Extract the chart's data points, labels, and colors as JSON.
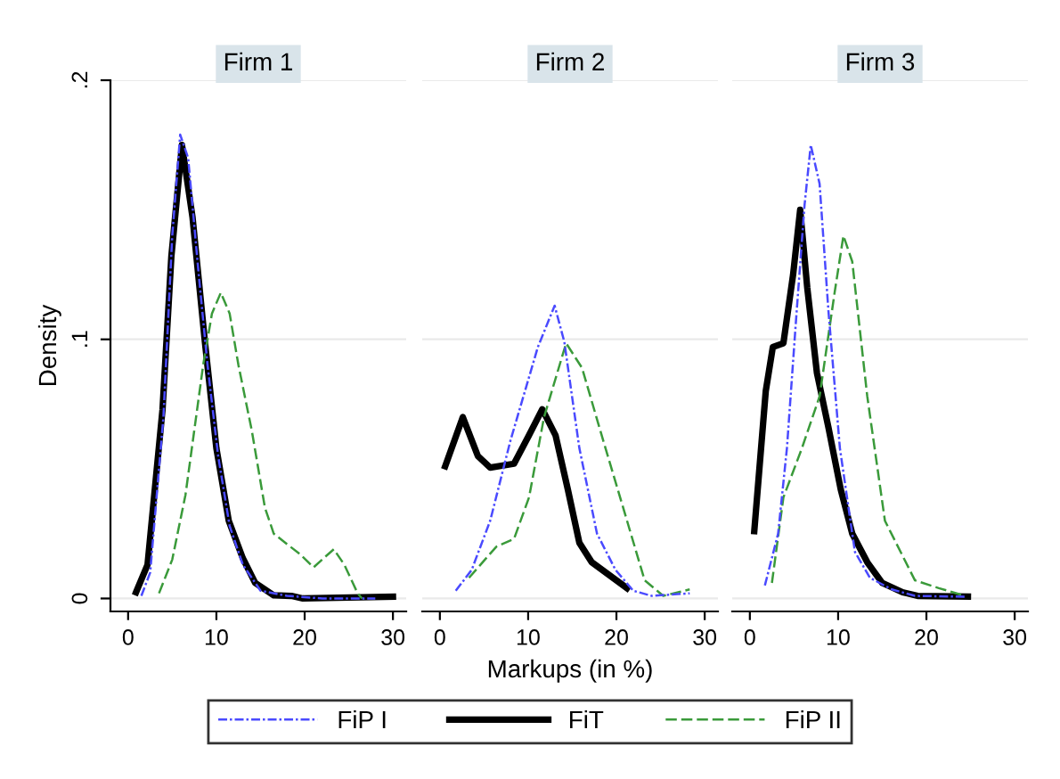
{
  "chart_data": [
    {
      "type": "line",
      "title": "Firm 1",
      "ylabel": "Density",
      "xlim": [
        -2,
        31.5
      ],
      "xticks": [
        0,
        10,
        20,
        30
      ],
      "ylim": [
        -0.005,
        0.2
      ],
      "yticks": [
        {
          "value": 0,
          "label": "0"
        },
        {
          "value": 0.1,
          "label": ".1"
        },
        {
          "value": 0.2,
          "label": ".2"
        }
      ],
      "grid": "y",
      "legend": "bottom",
      "series": [
        {
          "name": "FiP I",
          "color": "#4a4aff",
          "line_style": "dashdot",
          "x": [
            1.5,
            2.5,
            4,
            5,
            5.9,
            6.8,
            8,
            9,
            10.2,
            11.5,
            13,
            15,
            18,
            22,
            28
          ],
          "values": [
            0.001,
            0.01,
            0.07,
            0.14,
            0.179,
            0.17,
            0.125,
            0.09,
            0.055,
            0.028,
            0.013,
            0.003,
            0.001,
            0,
            0
          ]
        },
        {
          "name": "FiT",
          "color": "#000000",
          "line_style": "solid",
          "x": [
            0.9,
            2.2,
            3.9,
            4.9,
            6.1,
            7.3,
            8.7,
            10,
            11.4,
            13,
            14.4,
            16.5,
            18.5,
            19.8,
            30
          ],
          "values": [
            0.0024,
            0.013,
            0.073,
            0.132,
            0.175,
            0.147,
            0.099,
            0.058,
            0.03,
            0.0155,
            0.006,
            0.0012,
            0.001,
            0,
            0.0007
          ]
        },
        {
          "name": "FiP II",
          "color": "#3a9a3a",
          "line_style": "dashed",
          "x": [
            3.5,
            5,
            6.5,
            7.5,
            8.5,
            9.5,
            10.5,
            11.5,
            12.5,
            14,
            15.5,
            16.5,
            18,
            19.5,
            21,
            22.3,
            23.3,
            24.5,
            26,
            26.5
          ],
          "values": [
            0.002,
            0.015,
            0.04,
            0.065,
            0.09,
            0.11,
            0.118,
            0.11,
            0.09,
            0.065,
            0.035,
            0.025,
            0.021,
            0.017,
            0.012,
            0.016,
            0.019,
            0.013,
            0.002,
            0
          ]
        }
      ]
    },
    {
      "type": "line",
      "title": "Firm 2",
      "xlabel": "Markups (in %)",
      "xlim": [
        -2,
        31.5
      ],
      "xticks": [
        0,
        10,
        20,
        30
      ],
      "ylim": [
        -0.005,
        0.2
      ],
      "yticks": [
        0,
        0.1,
        0.2
      ],
      "tick_labels": "x",
      "grid": "y",
      "series": [
        {
          "color": "#4a4aff",
          "line_style": "dashdot",
          "x": [
            1.8,
            3.6,
            5.7,
            8,
            11.1,
            13,
            14.1,
            15.8,
            17.8,
            19.9,
            21.9,
            24,
            28.3
          ],
          "values": [
            0.003,
            0.011,
            0.03,
            0.061,
            0.097,
            0.113,
            0.099,
            0.058,
            0.025,
            0.011,
            0.003,
            0.001,
            0.002
          ]
        },
        {
          "color": "#000000",
          "line_style": "solid",
          "x": [
            0.6,
            2.6,
            4.3,
            5.7,
            8.4,
            10.1,
            11.6,
            13.1,
            14.5,
            15.8,
            17.2,
            21.2
          ],
          "values": [
            0.051,
            0.07,
            0.055,
            0.0505,
            0.052,
            0.063,
            0.073,
            0.063,
            0.042,
            0.0215,
            0.014,
            0.004
          ]
        },
        {
          "color": "#3a9a3a",
          "line_style": "dashed",
          "x": [
            3.3,
            6.4,
            8.4,
            10.1,
            11.8,
            14.3,
            16.1,
            18.5,
            21.2,
            23.2,
            25.3,
            28.3
          ],
          "values": [
            0.008,
            0.02,
            0.023,
            0.039,
            0.07,
            0.0985,
            0.089,
            0.061,
            0.03,
            0.007,
            0.001,
            0.0035
          ]
        }
      ]
    },
    {
      "type": "line",
      "title": "Firm 3",
      "xlim": [
        -2,
        31.5
      ],
      "xticks": [
        0,
        10,
        20,
        30
      ],
      "ylim": [
        -0.005,
        0.2
      ],
      "yticks": [
        0,
        0.1,
        0.2
      ],
      "tick_labels": "x",
      "grid": "y",
      "series": [
        {
          "color": "#4a4aff",
          "line_style": "dashdot",
          "x": [
            1.7,
            3.2,
            4.2,
            5.2,
            6.2,
            6.9,
            7.9,
            8.9,
            10.2,
            11.9,
            13.6,
            16,
            18.7,
            24.4
          ],
          "values": [
            0.005,
            0.025,
            0.058,
            0.106,
            0.152,
            0.175,
            0.16,
            0.111,
            0.058,
            0.018,
            0.008,
            0.0036,
            0.001,
            0.0007
          ]
        },
        {
          "color": "#000000",
          "line_style": "solid",
          "x": [
            0.5,
            1.8,
            2.6,
            3.8,
            4.9,
            5.7,
            6.5,
            7.6,
            8.9,
            10.3,
            11.6,
            13.3,
            15,
            17.3,
            19,
            24.7
          ],
          "values": [
            0.026,
            0.08,
            0.097,
            0.0985,
            0.125,
            0.15,
            0.12,
            0.087,
            0.066,
            0.042,
            0.025,
            0.014,
            0.006,
            0.0024,
            0.001,
            0.0007
          ]
        },
        {
          "color": "#3a9a3a",
          "line_style": "dashed",
          "x": [
            2.5,
            3.8,
            5.9,
            7.9,
            9.6,
            10.6,
            11.6,
            13.3,
            15.3,
            18.7,
            21.4,
            24.4
          ],
          "values": [
            0.006,
            0.039,
            0.058,
            0.078,
            0.118,
            0.14,
            0.13,
            0.078,
            0.03,
            0.007,
            0.004,
            0.001
          ]
        }
      ]
    }
  ]
}
